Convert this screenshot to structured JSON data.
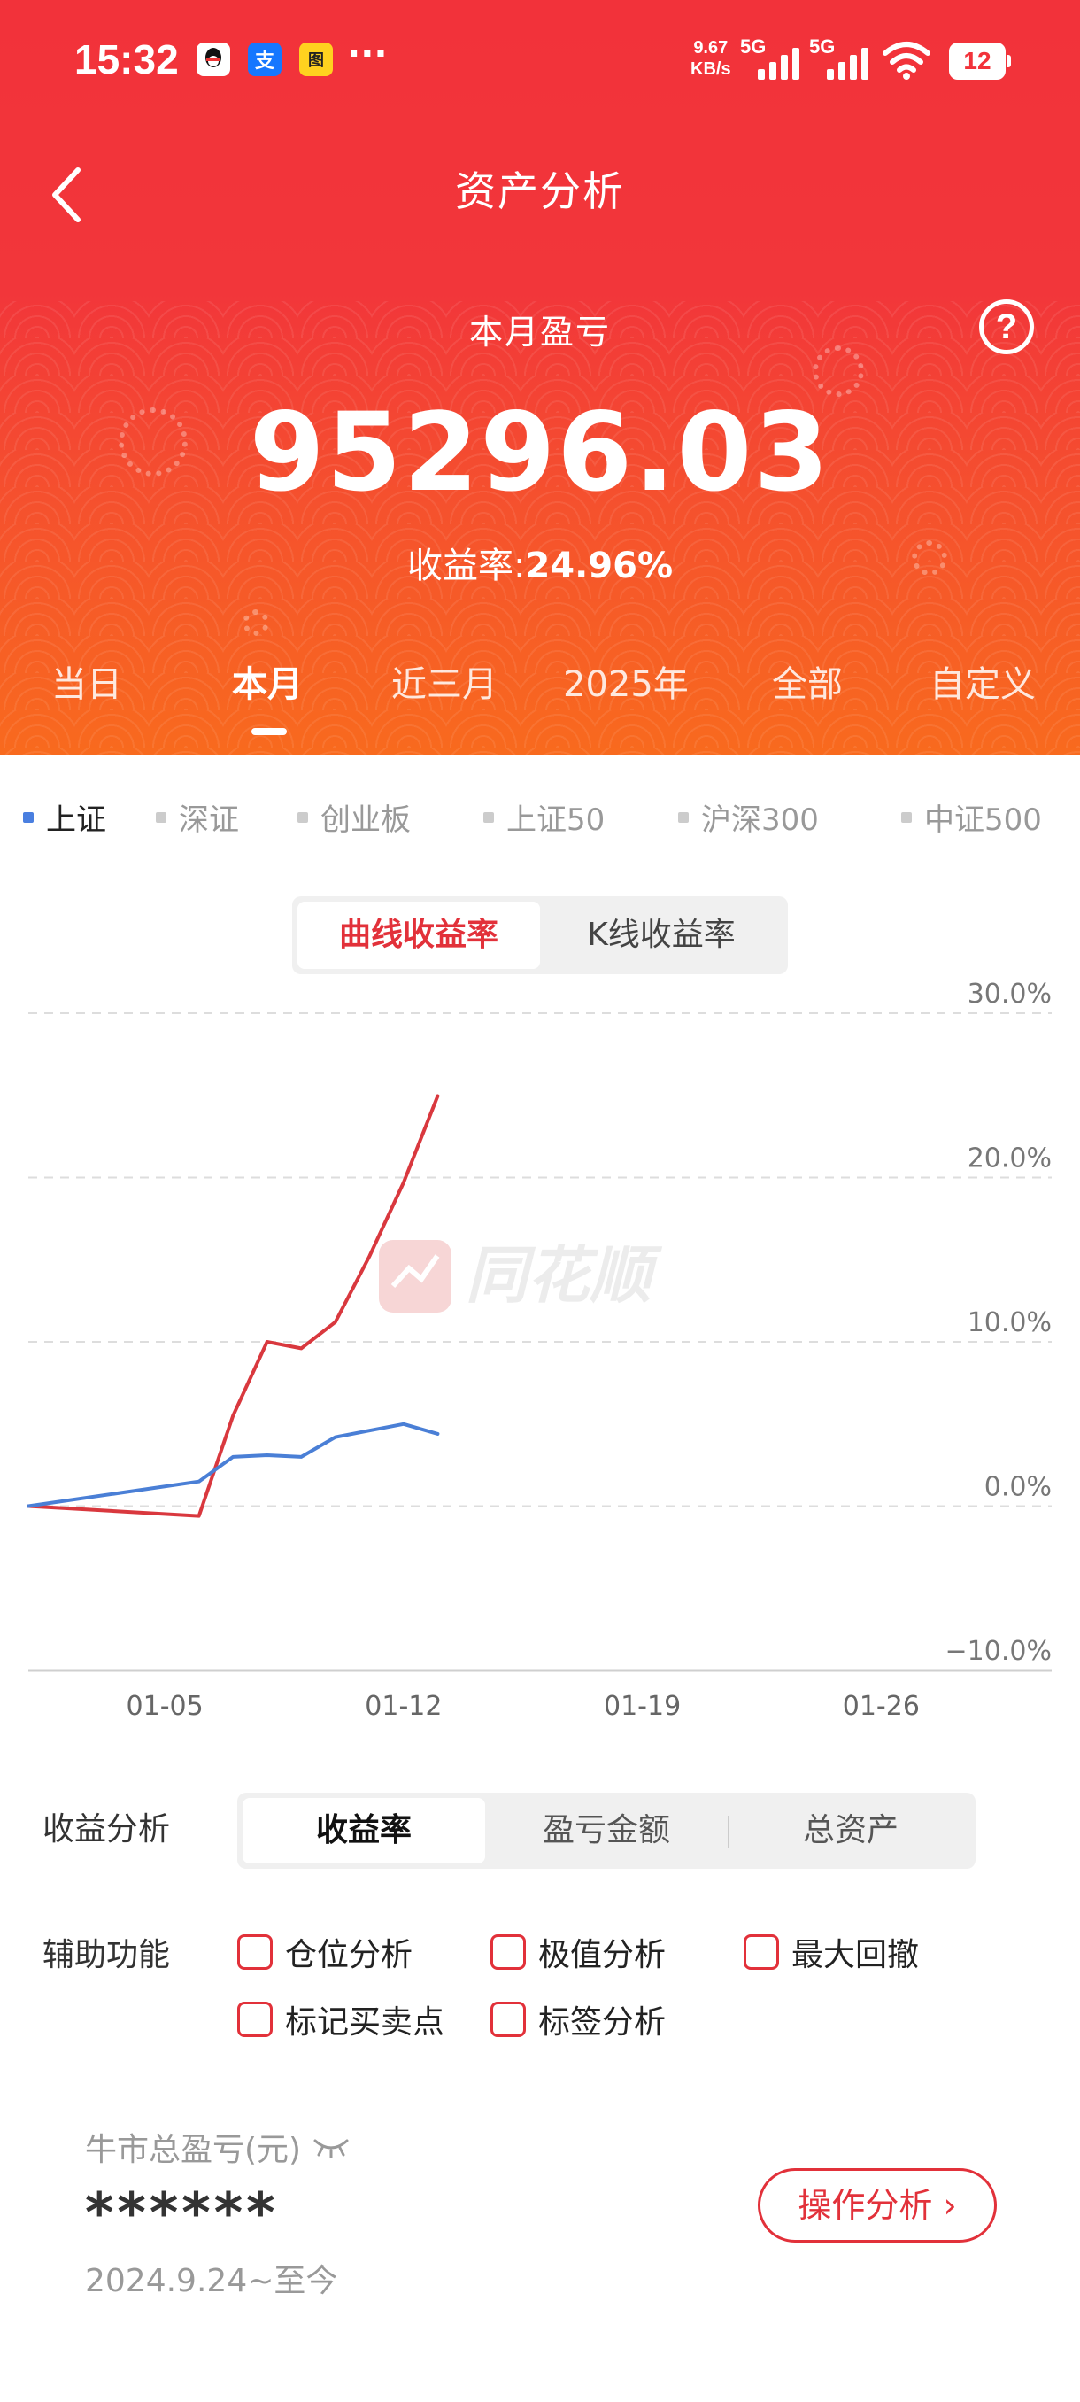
{
  "status_bar": {
    "time": "15:32",
    "app_icons": [
      "qq-icon",
      "alipay-icon",
      "app-icon"
    ],
    "alipay_char": "支",
    "app_char": "图",
    "more": "···",
    "net_speed_value": "9.67",
    "net_speed_unit": "KB/s",
    "signal1_label": "5G",
    "signal2_label": "5G",
    "battery": "12"
  },
  "header": {
    "title": "资产分析",
    "month_label": "本月盈亏",
    "amount": "95296.03",
    "rate_label": "收益率:",
    "rate_value": "24.96%",
    "help": "?"
  },
  "period_tabs": [
    {
      "label": "当日",
      "active": false
    },
    {
      "label": "本月",
      "active": true
    },
    {
      "label": "近三月",
      "active": false
    },
    {
      "label": "2025年",
      "active": false
    },
    {
      "label": "全部",
      "active": false
    },
    {
      "label": "自定义",
      "active": false
    }
  ],
  "index_options": [
    {
      "label": "上证",
      "active": true
    },
    {
      "label": "深证",
      "active": false
    },
    {
      "label": "创业板",
      "active": false
    },
    {
      "label": "上证50",
      "active": false
    },
    {
      "label": "沪深300",
      "active": false
    },
    {
      "label": "中证500",
      "active": false
    }
  ],
  "chart_toggle": {
    "curve": "曲线收益率",
    "kline": "K线收益率",
    "active": "curve"
  },
  "watermark": "同花顺",
  "chart_data": {
    "type": "line",
    "ylim": [
      -10,
      30
    ],
    "yticks": [
      30,
      20,
      10,
      0,
      -10
    ],
    "ytick_labels": [
      "30.0%",
      "20.0%",
      "10.0%",
      "0.0%",
      "−10.0%"
    ],
    "xlim": [
      1,
      31
    ],
    "xticks": [
      5,
      12,
      19,
      26
    ],
    "xtick_labels": [
      "01-05",
      "01-12",
      "01-19",
      "01-26"
    ],
    "grid": true,
    "series": [
      {
        "color": "#d9383e",
        "x": [
          1,
          6,
          7,
          8,
          9,
          10,
          11,
          12,
          13
        ],
        "y": [
          0,
          -0.6,
          5.5,
          10.0,
          9.6,
          11.2,
          15.2,
          19.7,
          24.96
        ]
      },
      {
        "color": "#4a7fd6",
        "x": [
          1,
          6,
          7,
          8,
          9,
          10,
          11,
          12,
          13
        ],
        "y": [
          0,
          1.5,
          3.0,
          3.1,
          3.0,
          4.2,
          4.6,
          5.0,
          4.4
        ]
      }
    ]
  },
  "analysis": {
    "label": "收益分析",
    "options": [
      "收益率",
      "盈亏金额",
      "总资产"
    ],
    "active": 0
  },
  "aux": {
    "label": "辅助功能",
    "options": [
      "仓位分析",
      "极值分析",
      "最大回撤",
      "标记买卖点",
      "标签分析"
    ]
  },
  "bull": {
    "label": "牛市总盈亏(元)",
    "value": "******",
    "period": "2024.9.24~至今",
    "button": "操作分析",
    "button_chevron": "›"
  }
}
